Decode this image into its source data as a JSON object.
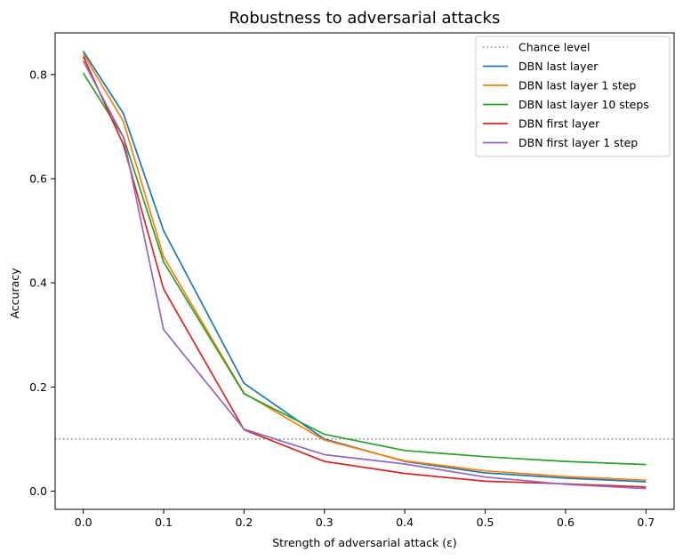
{
  "chart_data": {
    "type": "line",
    "title": "Robustness to adversarial attacks",
    "xlabel": "Strength of adversarial attack (ε)",
    "ylabel": "Accuracy",
    "xlim": [
      -0.035,
      0.735
    ],
    "ylim": [
      -0.035,
      0.88
    ],
    "xticks": [
      0.0,
      0.1,
      0.2,
      0.3,
      0.4,
      0.5,
      0.6,
      0.7
    ],
    "xtick_labels": [
      "0.0",
      "0.1",
      "0.2",
      "0.3",
      "0.4",
      "0.5",
      "0.6",
      "0.7"
    ],
    "yticks": [
      0.0,
      0.2,
      0.4,
      0.6,
      0.8
    ],
    "ytick_labels": [
      "0.0",
      "0.2",
      "0.4",
      "0.6",
      "0.8"
    ],
    "grid": false,
    "legend_position": "top-right",
    "reference_line": {
      "name": "Chance level",
      "y": 0.1,
      "color": "#808080",
      "style": "dotted"
    },
    "x": [
      0.0,
      0.05,
      0.1,
      0.2,
      0.3,
      0.4,
      0.5,
      0.6,
      0.7
    ],
    "series": [
      {
        "name": "DBN last layer",
        "color": "#1f77b4",
        "values": [
          0.845,
          0.725,
          0.5,
          0.207,
          0.1,
          0.057,
          0.035,
          0.025,
          0.018
        ]
      },
      {
        "name": "DBN last layer 1 step",
        "color": "#ff7f0e",
        "values": [
          0.84,
          0.71,
          0.45,
          0.188,
          0.098,
          0.058,
          0.039,
          0.028,
          0.021
        ]
      },
      {
        "name": "DBN last layer 10 steps",
        "color": "#2ca02c",
        "values": [
          0.803,
          0.68,
          0.44,
          0.187,
          0.109,
          0.078,
          0.066,
          0.057,
          0.051
        ]
      },
      {
        "name": "DBN first layer",
        "color": "#d62728",
        "values": [
          0.835,
          0.665,
          0.388,
          0.118,
          0.057,
          0.034,
          0.019,
          0.014,
          0.008
        ]
      },
      {
        "name": "DBN first layer 1 step",
        "color": "#9467bd",
        "values": [
          0.826,
          0.68,
          0.31,
          0.119,
          0.07,
          0.052,
          0.027,
          0.013,
          0.005
        ]
      }
    ]
  }
}
